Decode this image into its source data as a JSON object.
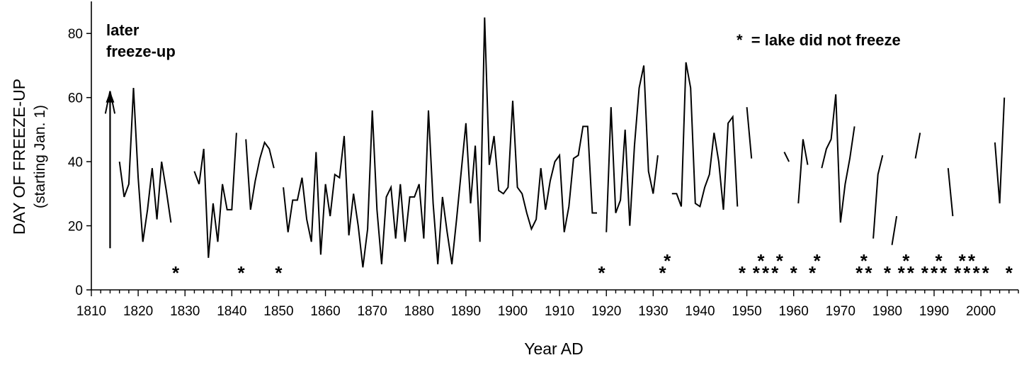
{
  "chart_data": {
    "type": "line",
    "xlabel": "Year AD",
    "ylabel": "DAY OF FREEZE-UP",
    "ylabel_sub": "(starting Jan. 1)",
    "xlim": [
      1810,
      2008
    ],
    "ylim": [
      0,
      90
    ],
    "x_ticks": [
      1810,
      1820,
      1830,
      1840,
      1850,
      1860,
      1870,
      1880,
      1890,
      1900,
      1910,
      1920,
      1930,
      1940,
      1950,
      1960,
      1970,
      1980,
      1990,
      2000
    ],
    "y_ticks": [
      0,
      20,
      40,
      60,
      80
    ],
    "grid": false,
    "annotations": {
      "later": "later",
      "freeze_up": "freeze-up",
      "legend": "*  = lake did not freeze"
    },
    "segments": [
      [
        [
          1813,
          55
        ],
        [
          1814,
          62
        ],
        [
          1815,
          55
        ]
      ],
      [
        [
          1816,
          40
        ],
        [
          1817,
          29
        ],
        [
          1818,
          33
        ],
        [
          1819,
          63
        ],
        [
          1820,
          35
        ],
        [
          1821,
          15
        ],
        [
          1822,
          25
        ],
        [
          1823,
          38
        ],
        [
          1824,
          22
        ],
        [
          1825,
          40
        ],
        [
          1826,
          31
        ],
        [
          1827,
          21
        ]
      ],
      [
        [
          1832,
          37
        ],
        [
          1833,
          33
        ],
        [
          1834,
          44
        ],
        [
          1835,
          10
        ],
        [
          1836,
          27
        ],
        [
          1837,
          15
        ],
        [
          1838,
          33
        ],
        [
          1839,
          25
        ],
        [
          1840,
          25
        ],
        [
          1841,
          49
        ]
      ],
      [
        [
          1843,
          47
        ],
        [
          1844,
          25
        ],
        [
          1845,
          34
        ],
        [
          1846,
          41
        ],
        [
          1847,
          46
        ],
        [
          1848,
          44
        ],
        [
          1849,
          38
        ]
      ],
      [
        [
          1851,
          32
        ],
        [
          1852,
          18
        ],
        [
          1853,
          28
        ],
        [
          1854,
          28
        ],
        [
          1855,
          35
        ],
        [
          1856,
          22
        ],
        [
          1857,
          15
        ],
        [
          1858,
          43
        ],
        [
          1859,
          11
        ],
        [
          1860,
          33
        ],
        [
          1861,
          23
        ],
        [
          1862,
          36
        ],
        [
          1863,
          35
        ],
        [
          1864,
          48
        ],
        [
          1865,
          17
        ],
        [
          1866,
          30
        ],
        [
          1867,
          20
        ],
        [
          1868,
          7
        ],
        [
          1869,
          19
        ],
        [
          1870,
          56
        ],
        [
          1871,
          25
        ],
        [
          1872,
          8
        ],
        [
          1873,
          29
        ],
        [
          1874,
          32
        ],
        [
          1875,
          16
        ],
        [
          1876,
          33
        ],
        [
          1877,
          15
        ],
        [
          1878,
          29
        ],
        [
          1879,
          29
        ],
        [
          1880,
          33
        ],
        [
          1881,
          16
        ],
        [
          1882,
          56
        ],
        [
          1883,
          27
        ],
        [
          1884,
          8
        ],
        [
          1885,
          29
        ],
        [
          1886,
          18
        ],
        [
          1887,
          8
        ],
        [
          1888,
          22
        ],
        [
          1889,
          37
        ],
        [
          1890,
          52
        ],
        [
          1891,
          27
        ],
        [
          1892,
          45
        ],
        [
          1893,
          15
        ],
        [
          1894,
          85
        ],
        [
          1895,
          39
        ],
        [
          1896,
          48
        ],
        [
          1897,
          31
        ],
        [
          1898,
          30
        ],
        [
          1899,
          32
        ],
        [
          1900,
          59
        ],
        [
          1901,
          32
        ],
        [
          1902,
          30
        ],
        [
          1903,
          24
        ],
        [
          1904,
          19
        ],
        [
          1905,
          22
        ],
        [
          1906,
          38
        ],
        [
          1907,
          25
        ],
        [
          1908,
          34
        ],
        [
          1909,
          40
        ],
        [
          1910,
          42
        ],
        [
          1911,
          18
        ],
        [
          1912,
          26
        ],
        [
          1913,
          41
        ],
        [
          1914,
          42
        ],
        [
          1915,
          51
        ],
        [
          1916,
          51
        ],
        [
          1917,
          24
        ],
        [
          1918,
          24
        ]
      ],
      [
        [
          1920,
          18
        ],
        [
          1921,
          57
        ],
        [
          1922,
          24
        ],
        [
          1923,
          28
        ],
        [
          1924,
          50
        ],
        [
          1925,
          20
        ],
        [
          1926,
          45
        ],
        [
          1927,
          63
        ],
        [
          1928,
          70
        ],
        [
          1929,
          37
        ],
        [
          1930,
          30
        ],
        [
          1931,
          42
        ]
      ],
      [
        [
          1934,
          30
        ],
        [
          1935,
          30
        ],
        [
          1936,
          26
        ],
        [
          1937,
          71
        ],
        [
          1938,
          63
        ],
        [
          1939,
          27
        ],
        [
          1940,
          26
        ],
        [
          1941,
          32
        ],
        [
          1942,
          36
        ],
        [
          1943,
          49
        ],
        [
          1944,
          40
        ],
        [
          1945,
          25
        ],
        [
          1946,
          52
        ],
        [
          1947,
          54
        ],
        [
          1948,
          26
        ]
      ],
      [
        [
          1950,
          57
        ],
        [
          1951,
          41
        ]
      ],
      [
        [
          1958,
          43
        ],
        [
          1959,
          40
        ]
      ],
      [
        [
          1961,
          27
        ],
        [
          1962,
          47
        ],
        [
          1963,
          39
        ]
      ],
      [
        [
          1966,
          38
        ],
        [
          1967,
          44
        ],
        [
          1968,
          47
        ],
        [
          1969,
          61
        ],
        [
          1970,
          21
        ],
        [
          1971,
          33
        ],
        [
          1972,
          41
        ],
        [
          1973,
          51
        ]
      ],
      [
        [
          1977,
          16
        ],
        [
          1978,
          36
        ],
        [
          1979,
          42
        ]
      ],
      [
        [
          1981,
          14
        ],
        [
          1982,
          23
        ]
      ],
      [
        [
          1986,
          41
        ],
        [
          1987,
          49
        ]
      ],
      [
        [
          1993,
          38
        ],
        [
          1994,
          23
        ]
      ],
      [
        [
          2003,
          46
        ],
        [
          2004,
          27
        ],
        [
          2005,
          60
        ]
      ]
    ],
    "no_freeze_years": [
      1828,
      1842,
      1850,
      1919,
      1932,
      1933,
      1949,
      1952,
      1953,
      1954,
      1956,
      1957,
      1960,
      1964,
      1965,
      1974,
      1975,
      1976,
      1980,
      1983,
      1984,
      1985,
      1988,
      1990,
      1991,
      1992,
      1995,
      1996,
      1997,
      1998,
      1999,
      2001,
      2006
    ],
    "arrow": {
      "x": 1814,
      "y_from": 13,
      "y_to": 62
    }
  }
}
